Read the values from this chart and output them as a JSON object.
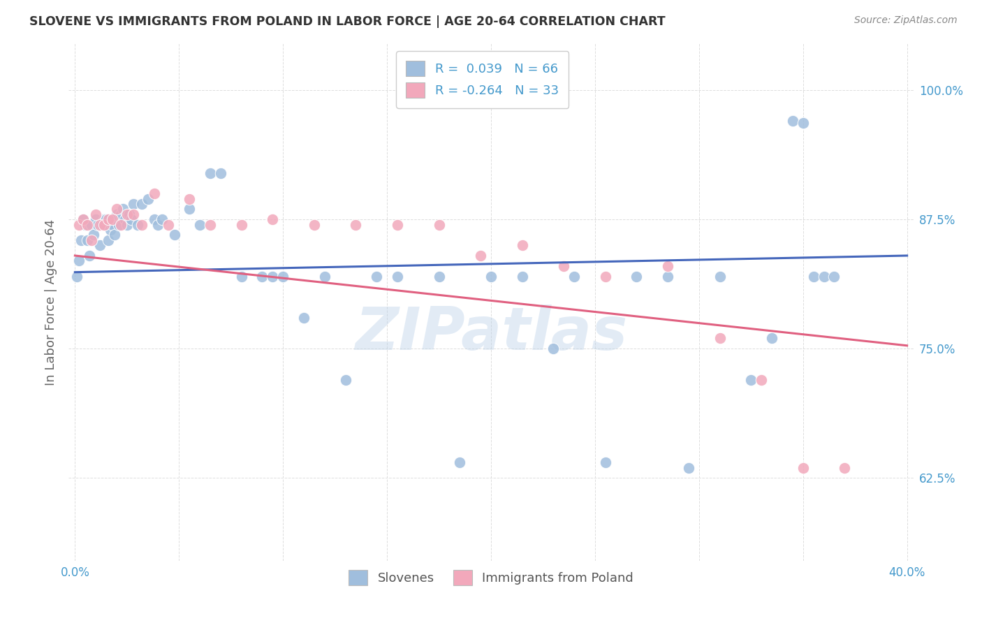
{
  "title": "SLOVENE VS IMMIGRANTS FROM POLAND IN LABOR FORCE | AGE 20-64 CORRELATION CHART",
  "source": "Source: ZipAtlas.com",
  "ylabel": "In Labor Force | Age 20-64",
  "xlim": [
    -0.003,
    0.403
  ],
  "ylim": [
    0.545,
    1.045
  ],
  "xticks": [
    0.0,
    0.05,
    0.1,
    0.15,
    0.2,
    0.25,
    0.3,
    0.35,
    0.4
  ],
  "xticklabels": [
    "0.0%",
    "",
    "",
    "",
    "",
    "",
    "",
    "",
    "40.0%"
  ],
  "yticks": [
    0.625,
    0.75,
    0.875,
    1.0
  ],
  "yticklabels": [
    "62.5%",
    "75.0%",
    "87.5%",
    "100.0%"
  ],
  "legend_label1": "Slovenes",
  "legend_label2": "Immigrants from Poland",
  "r1": 0.039,
  "n1": 66,
  "r2": -0.264,
  "n2": 33,
  "blue_color": "#a0bedd",
  "pink_color": "#f2a8bb",
  "blue_line_color": "#4466bb",
  "pink_line_color": "#e06080",
  "watermark": "ZIPatlas",
  "background_color": "#ffffff",
  "title_color": "#333333",
  "axis_color": "#4499cc",
  "label_color": "#666666",
  "blue_line_y0": 0.824,
  "blue_line_y1": 0.84,
  "pink_line_y0": 0.84,
  "pink_line_y1": 0.753,
  "blue_x": [
    0.001,
    0.002,
    0.003,
    0.004,
    0.005,
    0.006,
    0.007,
    0.008,
    0.009,
    0.01,
    0.011,
    0.012,
    0.013,
    0.014,
    0.015,
    0.016,
    0.017,
    0.018,
    0.019,
    0.02,
    0.021,
    0.022,
    0.023,
    0.024,
    0.025,
    0.026,
    0.027,
    0.028,
    0.03,
    0.032,
    0.035,
    0.038,
    0.04,
    0.042,
    0.048,
    0.055,
    0.06,
    0.065,
    0.07,
    0.08,
    0.09,
    0.095,
    0.1,
    0.11,
    0.12,
    0.13,
    0.145,
    0.155,
    0.175,
    0.185,
    0.2,
    0.215,
    0.23,
    0.24,
    0.255,
    0.27,
    0.285,
    0.295,
    0.31,
    0.325,
    0.335,
    0.345,
    0.35,
    0.355,
    0.36,
    0.365
  ],
  "blue_y": [
    0.82,
    0.835,
    0.855,
    0.875,
    0.87,
    0.855,
    0.84,
    0.87,
    0.86,
    0.875,
    0.87,
    0.85,
    0.87,
    0.875,
    0.875,
    0.855,
    0.865,
    0.87,
    0.86,
    0.88,
    0.87,
    0.88,
    0.885,
    0.875,
    0.87,
    0.88,
    0.875,
    0.89,
    0.87,
    0.89,
    0.895,
    0.875,
    0.87,
    0.875,
    0.86,
    0.885,
    0.87,
    0.92,
    0.92,
    0.82,
    0.82,
    0.82,
    0.82,
    0.78,
    0.82,
    0.72,
    0.82,
    0.82,
    0.82,
    0.64,
    0.82,
    0.82,
    0.75,
    0.82,
    0.64,
    0.82,
    0.82,
    0.635,
    0.82,
    0.72,
    0.76,
    0.97,
    0.968,
    0.82,
    0.82,
    0.82
  ],
  "pink_x": [
    0.002,
    0.004,
    0.006,
    0.008,
    0.01,
    0.012,
    0.014,
    0.016,
    0.018,
    0.02,
    0.022,
    0.025,
    0.028,
    0.032,
    0.038,
    0.045,
    0.055,
    0.065,
    0.08,
    0.095,
    0.115,
    0.135,
    0.155,
    0.175,
    0.195,
    0.215,
    0.235,
    0.255,
    0.285,
    0.31,
    0.33,
    0.35,
    0.37
  ],
  "pink_y": [
    0.87,
    0.875,
    0.87,
    0.855,
    0.88,
    0.87,
    0.87,
    0.875,
    0.875,
    0.885,
    0.87,
    0.88,
    0.88,
    0.87,
    0.9,
    0.87,
    0.895,
    0.87,
    0.87,
    0.875,
    0.87,
    0.87,
    0.87,
    0.87,
    0.84,
    0.85,
    0.83,
    0.82,
    0.83,
    0.76,
    0.72,
    0.635,
    0.635
  ]
}
